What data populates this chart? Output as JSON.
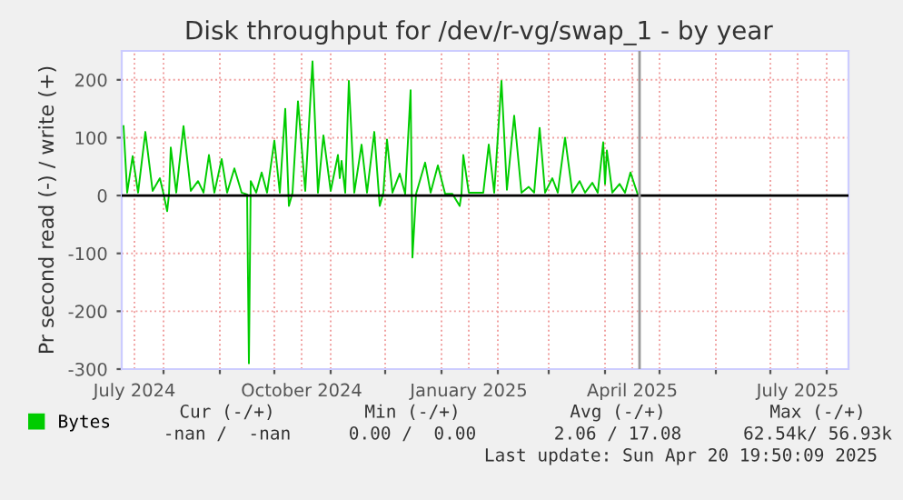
{
  "chart_data": {
    "type": "line",
    "title": "Disk throughput for /dev/r-vg/swap_1 - by year",
    "ylabel": "Pr second read (-) / write (+)",
    "x": [
      "2024-07-10",
      "2024-07-12",
      "2024-07-15",
      "2024-07-18",
      "2024-07-22",
      "2024-07-26",
      "2024-07-30",
      "2024-08-01",
      "2024-08-03",
      "2024-08-04",
      "2024-08-05",
      "2024-08-08",
      "2024-08-12",
      "2024-08-16",
      "2024-08-20",
      "2024-08-23",
      "2024-08-26",
      "2024-08-29",
      "2024-09-02",
      "2024-09-05",
      "2024-09-09",
      "2024-09-13",
      "2024-09-16",
      "2024-09-17",
      "2024-09-18",
      "2024-09-21",
      "2024-09-24",
      "2024-09-27",
      "2024-10-01",
      "2024-10-04",
      "2024-10-07",
      "2024-10-09",
      "2024-10-11",
      "2024-10-14",
      "2024-10-18",
      "2024-10-22",
      "2024-10-25",
      "2024-10-28",
      "2024-11-01",
      "2024-11-05",
      "2024-11-06",
      "2024-11-07",
      "2024-11-09",
      "2024-11-11",
      "2024-11-14",
      "2024-11-18",
      "2024-11-21",
      "2024-11-25",
      "2024-11-28",
      "2024-11-30",
      "2024-12-02",
      "2024-12-05",
      "2024-12-09",
      "2024-12-12",
      "2024-12-15",
      "2024-12-16",
      "2024-12-18",
      "2024-12-23",
      "2024-12-26",
      "2024-12-30",
      "2025-01-03",
      "2025-01-07",
      "2025-01-11",
      "2025-01-12",
      "2025-01-13",
      "2025-01-16",
      "2025-01-20",
      "2025-01-24",
      "2025-01-27",
      "2025-01-30",
      "2025-02-03",
      "2025-02-06",
      "2025-02-10",
      "2025-02-14",
      "2025-02-18",
      "2025-02-21",
      "2025-02-24",
      "2025-02-27",
      "2025-03-03",
      "2025-03-06",
      "2025-03-10",
      "2025-03-14",
      "2025-03-18",
      "2025-03-21",
      "2025-03-25",
      "2025-03-28",
      "2025-03-31",
      "2025-04-01",
      "2025-04-02",
      "2025-04-05",
      "2025-04-09",
      "2025-04-12",
      "2025-04-15",
      "2025-04-19"
    ],
    "series": [
      {
        "name": "Bytes",
        "color": "#00cc00",
        "values": [
          120,
          5,
          68,
          5,
          110,
          8,
          30,
          3,
          -27,
          2,
          83,
          5,
          120,
          8,
          25,
          5,
          70,
          5,
          63,
          5,
          47,
          5,
          2,
          -290,
          25,
          5,
          40,
          5,
          95,
          5,
          150,
          -18,
          5,
          163,
          8,
          232,
          5,
          104,
          8,
          70,
          30,
          60,
          5,
          198,
          5,
          88,
          5,
          110,
          -18,
          5,
          97,
          5,
          38,
          3,
          182,
          -107,
          3,
          57,
          5,
          52,
          3,
          3,
          -18,
          3,
          70,
          5,
          5,
          5,
          88,
          5,
          198,
          10,
          138,
          5,
          15,
          5,
          117,
          5,
          30,
          5,
          100,
          5,
          25,
          5,
          22,
          5,
          92,
          20,
          78,
          5,
          20,
          5,
          40,
          2
        ]
      }
    ],
    "xlim": [
      "2024-07-09",
      "2025-08-13"
    ],
    "xticks": [
      {
        "value": "2024-07-16",
        "label": "July 2024"
      },
      {
        "value": "2024-08-01",
        "label": null
      },
      {
        "value": "2024-09-01",
        "label": null
      },
      {
        "value": "2024-10-01",
        "label": null
      },
      {
        "value": "2024-10-16",
        "label": "October 2024"
      },
      {
        "value": "2024-11-01",
        "label": null
      },
      {
        "value": "2024-12-01",
        "label": null
      },
      {
        "value": "2025-01-01",
        "label": null
      },
      {
        "value": "2025-01-16",
        "label": "January 2025"
      },
      {
        "value": "2025-02-01",
        "label": null
      },
      {
        "value": "2025-03-01",
        "label": null
      },
      {
        "value": "2025-04-01",
        "label": null
      },
      {
        "value": "2025-04-16",
        "label": "April 2025"
      },
      {
        "value": "2025-05-01",
        "label": null
      },
      {
        "value": "2025-06-01",
        "label": null
      },
      {
        "value": "2025-07-01",
        "label": null
      },
      {
        "value": "2025-07-16",
        "label": "July 2025"
      },
      {
        "value": "2025-08-01",
        "label": null
      }
    ],
    "ylim": [
      -300,
      250
    ],
    "yticks": [
      -300,
      -200,
      -100,
      0,
      100,
      200
    ],
    "ref_lines": [
      {
        "axis": "y",
        "value": 0,
        "color": "#000000"
      },
      {
        "axis": "x",
        "value": "2025-04-20",
        "color": "#999999"
      }
    ],
    "grid": true,
    "legend": "bottom",
    "marker": "none",
    "line_style": "solid",
    "annotations": [
      "Cur (-/+)",
      "Min (-/+)",
      "Avg (-/+)",
      "Max (-/+)",
      "-nan /  -nan",
      "0.00 /  0.00",
      "2.06 / 17.08",
      "62.54k/ 56.93k",
      "Last update: Sun Apr 20 19:50:09 2025"
    ]
  }
}
